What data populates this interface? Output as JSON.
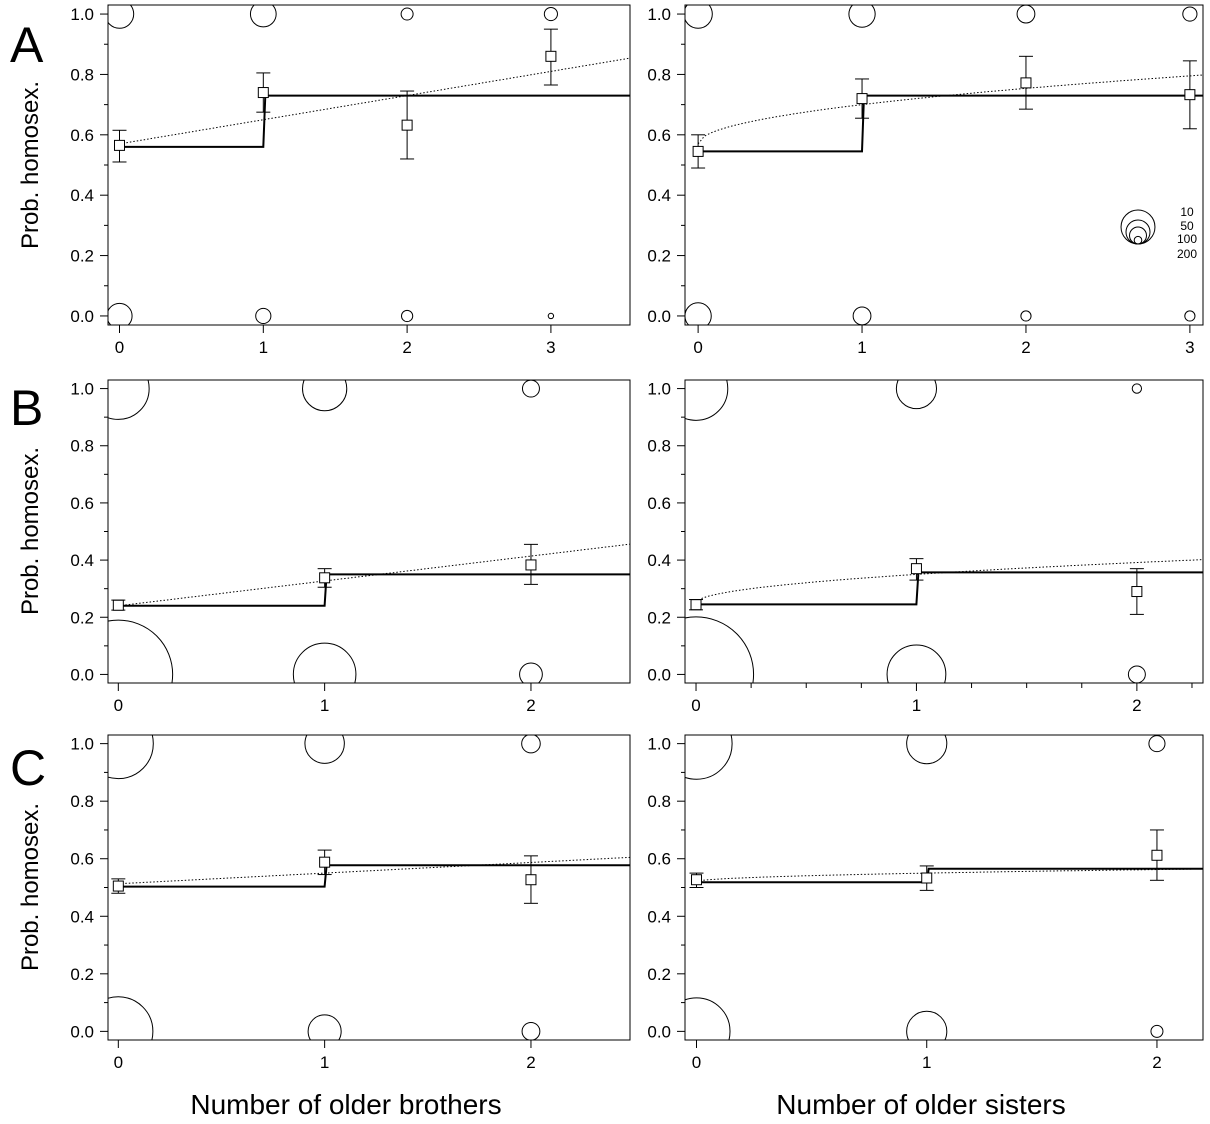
{
  "figure": {
    "row_letters": [
      "A",
      "B",
      "C"
    ],
    "y_axis_label": "Prob. homosex.",
    "x_axis_labels": [
      "Number of older brothers",
      "Number of older sisters"
    ],
    "size_legend_labels": [
      "10",
      "50",
      "100",
      "200"
    ]
  },
  "chart_data": [
    {
      "id": "A-brothers",
      "row": "A",
      "type": "scatter",
      "title": "",
      "xlabel": "",
      "ylabel": "Prob. homosex.",
      "xlim": [
        -0.08,
        3.55
      ],
      "ylim": [
        -0.03,
        1.03
      ],
      "x_ticks": [
        0,
        1,
        2,
        3
      ],
      "y_ticks": [
        0.0,
        0.2,
        0.4,
        0.6,
        0.8,
        1.0
      ],
      "y_tick_labels": [
        "0.0",
        "0.2",
        "0.4",
        "0.6",
        "0.8",
        "1.0"
      ],
      "x_minor_ticks": [],
      "estimates": [
        {
          "x": 0,
          "y": 0.565,
          "ci": [
            0.51,
            0.615
          ]
        },
        {
          "x": 1,
          "y": 0.74,
          "ci": [
            0.675,
            0.805
          ]
        },
        {
          "x": 2,
          "y": 0.632,
          "ci": [
            0.52,
            0.745
          ]
        },
        {
          "x": 3,
          "y": 0.86,
          "ci": [
            0.765,
            0.95
          ]
        }
      ],
      "step_model": {
        "x_step": 1,
        "y_before": 0.56,
        "y_after": 0.73
      },
      "trend_model": {
        "type": "linear",
        "y0": 0.57,
        "slope": 0.08
      },
      "raw_counts": [
        {
          "x": 0,
          "y": 1,
          "n": 140
        },
        {
          "x": 0,
          "y": 0,
          "n": 110
        },
        {
          "x": 1,
          "y": 1,
          "n": 115
        },
        {
          "x": 1,
          "y": 0,
          "n": 40
        },
        {
          "x": 2,
          "y": 1,
          "n": 25
        },
        {
          "x": 2,
          "y": 0,
          "n": 22
        },
        {
          "x": 3,
          "y": 1,
          "n": 30
        },
        {
          "x": 3,
          "y": 0,
          "n": 5
        }
      ]
    },
    {
      "id": "A-sisters",
      "row": "A",
      "type": "scatter",
      "title": "",
      "xlabel": "",
      "ylabel": "",
      "xlim": [
        -0.08,
        3.08
      ],
      "ylim": [
        -0.03,
        1.03
      ],
      "x_ticks": [
        0,
        1,
        2,
        3
      ],
      "y_ticks": [
        0.0,
        0.2,
        0.4,
        0.6,
        0.8,
        1.0
      ],
      "y_tick_labels": [
        "0.0",
        "0.2",
        "0.4",
        "0.6",
        "0.8",
        "1.0"
      ],
      "x_minor_ticks": [],
      "estimates": [
        {
          "x": 0,
          "y": 0.545,
          "ci": [
            0.49,
            0.6
          ]
        },
        {
          "x": 1,
          "y": 0.72,
          "ci": [
            0.655,
            0.785
          ]
        },
        {
          "x": 2,
          "y": 0.772,
          "ci": [
            0.685,
            0.86
          ]
        },
        {
          "x": 3,
          "y": 0.733,
          "ci": [
            0.62,
            0.845
          ]
        }
      ],
      "step_model": {
        "x_step": 1,
        "y_before": 0.545,
        "y_after": 0.73
      },
      "trend_model": {
        "type": "sqrt",
        "y0": 0.57,
        "coef": 0.13
      },
      "raw_counts": [
        {
          "x": 0,
          "y": 1,
          "n": 140
        },
        {
          "x": 0,
          "y": 0,
          "n": 120
        },
        {
          "x": 1,
          "y": 1,
          "n": 120
        },
        {
          "x": 1,
          "y": 0,
          "n": 55
        },
        {
          "x": 2,
          "y": 1,
          "n": 55
        },
        {
          "x": 2,
          "y": 0,
          "n": 18
        },
        {
          "x": 3,
          "y": 1,
          "n": 35
        },
        {
          "x": 3,
          "y": 0,
          "n": 18
        }
      ],
      "size_legend": [
        10,
        50,
        100,
        200
      ]
    },
    {
      "id": "B-brothers",
      "row": "B",
      "type": "scatter",
      "title": "",
      "xlabel": "",
      "ylabel": "Prob. homosex.",
      "xlim": [
        -0.05,
        2.48
      ],
      "ylim": [
        -0.03,
        1.03
      ],
      "x_ticks": [
        0,
        1,
        2
      ],
      "y_ticks": [
        0.0,
        0.2,
        0.4,
        0.6,
        0.8,
        1.0
      ],
      "y_tick_labels": [
        "0.0",
        "0.2",
        "0.4",
        "0.6",
        "0.8",
        "1.0"
      ],
      "x_minor_ticks": [],
      "estimates": [
        {
          "x": 0,
          "y": 0.242,
          "ci": [
            0.225,
            0.26
          ]
        },
        {
          "x": 1,
          "y": 0.338,
          "ci": [
            0.305,
            0.37
          ]
        },
        {
          "x": 2,
          "y": 0.383,
          "ci": [
            0.315,
            0.455
          ]
        }
      ],
      "step_model": {
        "x_step": 1,
        "y_before": 0.24,
        "y_after": 0.35
      },
      "trend_model": {
        "type": "linear",
        "y0": 0.24,
        "slope": 0.087
      },
      "raw_counts": [
        {
          "x": 0,
          "y": 1,
          "n": 660
        },
        {
          "x": 0,
          "y": 0,
          "n": 2050
        },
        {
          "x": 1,
          "y": 1,
          "n": 340
        },
        {
          "x": 1,
          "y": 0,
          "n": 680
        },
        {
          "x": 2,
          "y": 1,
          "n": 50
        },
        {
          "x": 2,
          "y": 0,
          "n": 90
        }
      ]
    },
    {
      "id": "B-sisters",
      "row": "B",
      "type": "scatter",
      "title": "",
      "xlabel": "",
      "ylabel": "",
      "xlim": [
        -0.05,
        2.3
      ],
      "ylim": [
        -0.03,
        1.03
      ],
      "x_ticks": [
        0,
        1,
        2
      ],
      "y_ticks": [
        0.0,
        0.2,
        0.4,
        0.6,
        0.8,
        1.0
      ],
      "y_tick_labels": [
        "0.0",
        "0.2",
        "0.4",
        "0.6",
        "0.8",
        "1.0"
      ],
      "x_minor_ticks": [
        0.25,
        0.5,
        0.75,
        1.25,
        1.5,
        1.75,
        2.25
      ],
      "estimates": [
        {
          "x": 0,
          "y": 0.244,
          "ci": [
            0.226,
            0.262
          ]
        },
        {
          "x": 1,
          "y": 0.37,
          "ci": [
            0.33,
            0.405
          ]
        },
        {
          "x": 2,
          "y": 0.29,
          "ci": [
            0.21,
            0.37
          ]
        }
      ],
      "step_model": {
        "x_step": 1,
        "y_before": 0.245,
        "y_after": 0.357
      },
      "trend_model": {
        "type": "sqrt",
        "y0": 0.25,
        "coef": 0.1
      },
      "raw_counts": [
        {
          "x": 0,
          "y": 1,
          "n": 700
        },
        {
          "x": 0,
          "y": 0,
          "n": 2300
        },
        {
          "x": 1,
          "y": 1,
          "n": 280
        },
        {
          "x": 1,
          "y": 0,
          "n": 600
        },
        {
          "x": 2,
          "y": 1,
          "n": 15
        },
        {
          "x": 2,
          "y": 0,
          "n": 50
        }
      ]
    },
    {
      "id": "C-brothers",
      "row": "C",
      "type": "scatter",
      "title": "",
      "xlabel": "Number of older brothers",
      "ylabel": "Prob. homosex.",
      "xlim": [
        -0.05,
        2.48
      ],
      "ylim": [
        -0.03,
        1.03
      ],
      "x_ticks": [
        0,
        1,
        2
      ],
      "y_ticks": [
        0.0,
        0.2,
        0.4,
        0.6,
        0.8,
        1.0
      ],
      "y_tick_labels": [
        "0.0",
        "0.2",
        "0.4",
        "0.6",
        "0.8",
        "1.0"
      ],
      "x_minor_ticks": [],
      "estimates": [
        {
          "x": 0,
          "y": 0.505,
          "ci": [
            0.48,
            0.53
          ]
        },
        {
          "x": 1,
          "y": 0.588,
          "ci": [
            0.545,
            0.63
          ]
        },
        {
          "x": 2,
          "y": 0.527,
          "ci": [
            0.445,
            0.61
          ]
        }
      ],
      "step_model": {
        "x_step": 1,
        "y_before": 0.503,
        "y_after": 0.577
      },
      "trend_model": {
        "type": "linear",
        "y0": 0.513,
        "slope": 0.037
      },
      "raw_counts": [
        {
          "x": 0,
          "y": 1,
          "n": 850
        },
        {
          "x": 0,
          "y": 0,
          "n": 830
        },
        {
          "x": 1,
          "y": 1,
          "n": 270
        },
        {
          "x": 1,
          "y": 0,
          "n": 190
        },
        {
          "x": 2,
          "y": 1,
          "n": 60
        },
        {
          "x": 2,
          "y": 0,
          "n": 55
        }
      ]
    },
    {
      "id": "C-sisters",
      "row": "C",
      "type": "scatter",
      "title": "",
      "xlabel": "Number of older sisters",
      "ylabel": "",
      "xlim": [
        -0.05,
        2.2
      ],
      "ylim": [
        -0.03,
        1.03
      ],
      "x_ticks": [
        0,
        1,
        2
      ],
      "y_ticks": [
        0.0,
        0.2,
        0.4,
        0.6,
        0.8,
        1.0
      ],
      "y_tick_labels": [
        "0.0",
        "0.2",
        "0.4",
        "0.6",
        "0.8",
        "1.0"
      ],
      "x_minor_ticks": [],
      "estimates": [
        {
          "x": 0,
          "y": 0.527,
          "ci": [
            0.5,
            0.55
          ]
        },
        {
          "x": 1,
          "y": 0.533,
          "ci": [
            0.49,
            0.575
          ]
        },
        {
          "x": 2,
          "y": 0.612,
          "ci": [
            0.525,
            0.7
          ]
        }
      ],
      "step_model": {
        "x_step": 1,
        "y_before": 0.518,
        "y_after": 0.565
      },
      "trend_model": {
        "type": "sqrt",
        "y0": 0.52,
        "coef": 0.03
      },
      "raw_counts": [
        {
          "x": 0,
          "y": 1,
          "n": 880
        },
        {
          "x": 0,
          "y": 0,
          "n": 780
        },
        {
          "x": 1,
          "y": 1,
          "n": 280
        },
        {
          "x": 1,
          "y": 0,
          "n": 280
        },
        {
          "x": 2,
          "y": 1,
          "n": 45
        },
        {
          "x": 2,
          "y": 0,
          "n": 25
        }
      ]
    }
  ]
}
